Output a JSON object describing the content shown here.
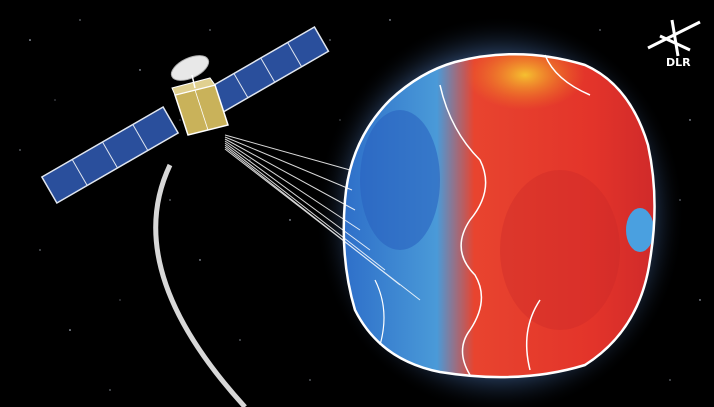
{
  "logo": {
    "text": "DLR",
    "color": "#ffffff"
  },
  "colors": {
    "space": "#000000",
    "asteroid_red": "#e3342a",
    "asteroid_orange": "#f29a20",
    "asteroid_blue": "#2f7fd0",
    "outline": "#ffffff",
    "solar_panel": "#2a4f9c",
    "glow": "#3a5f9e"
  }
}
